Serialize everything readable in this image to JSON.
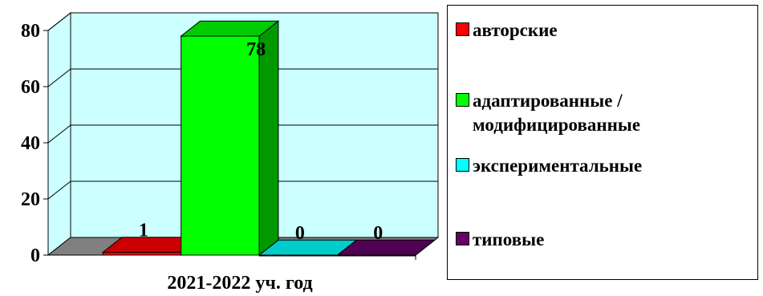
{
  "chart_data": {
    "type": "bar",
    "categories": [
      "2021-2022 уч. год"
    ],
    "series": [
      {
        "name": "авторские",
        "values": [
          1
        ],
        "color": "#ff0000"
      },
      {
        "name": "адаптированные /\nмодифицированные",
        "values": [
          78
        ],
        "color": "#00ff00"
      },
      {
        "name": "экспериментальные",
        "values": [
          0
        ],
        "color": "#00ffff"
      },
      {
        "name": "типовые",
        "values": [
          0
        ],
        "color": "#660066"
      }
    ],
    "y_ticks": [
      "0",
      "20",
      "40",
      "60",
      "80"
    ],
    "ylim": [
      0,
      80
    ],
    "three_d": true,
    "grid": true,
    "legend_position": "right",
    "wall_color": "#ccffff",
    "floor_color": "#808080"
  }
}
